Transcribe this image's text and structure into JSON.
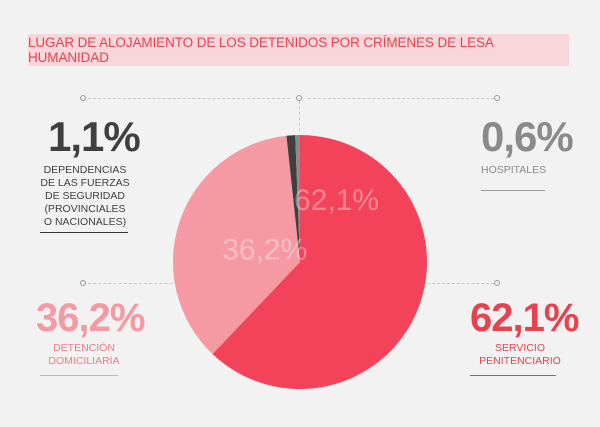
{
  "title": "LUGAR DE ALOJAMIENTO DE LOS DETENIDOS POR CRÍMENES DE LESA HUMANIDAD",
  "callouts": {
    "top_left": {
      "value": "1,1%",
      "label": "DEPENDENCIAS DE LAS FUERZAS DE SEGURIDAD (PROVINCIALES O NACIONALES)"
    },
    "top_right": {
      "value": "0,6%",
      "label": "HOSPITALES"
    },
    "bottom_left": {
      "value": "36,2%",
      "label": "DETENCIÓN DOMICILIARIA"
    },
    "bottom_right": {
      "value": "62,1%",
      "label": "SERVICIO PENITENCIARIO"
    }
  },
  "colors": {
    "servicio": "#f2435a",
    "domiciliaria": "#f59aa3",
    "fuerzas": "#3f3f3f",
    "hospitales": "#8a8a8a",
    "accent": "#e8424f"
  },
  "chart_data": {
    "type": "pie",
    "title": "LUGAR DE ALOJAMIENTO DE LOS DETENIDOS POR CRÍMENES DE LESA HUMANIDAD",
    "slices": [
      {
        "name": "SERVICIO PENITENCIARIO",
        "value": 62.1,
        "label": "62,1%"
      },
      {
        "name": "DETENCIÓN DOMICILIARIA",
        "value": 36.2,
        "label": "36,2%"
      },
      {
        "name": "DEPENDENCIAS DE LAS FUERZAS DE SEGURIDAD (PROVINCIALES O NACIONALES)",
        "value": 1.1,
        "label": "1,1%"
      },
      {
        "name": "HOSPITALES",
        "value": 0.6,
        "label": "0,6%"
      }
    ]
  }
}
